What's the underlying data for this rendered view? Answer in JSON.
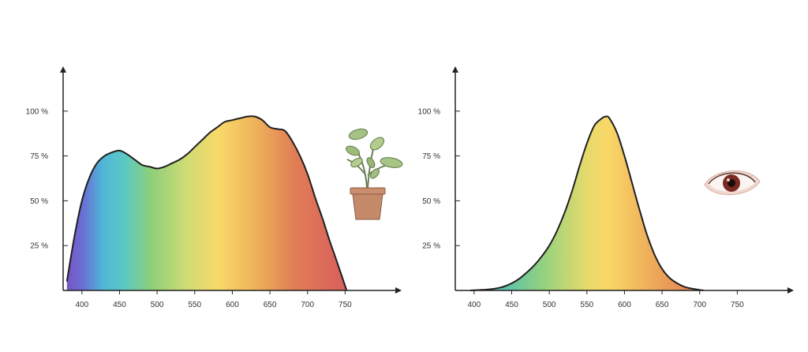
{
  "chart_data": [
    {
      "type": "area",
      "title": "",
      "xlabel": "",
      "ylabel": "",
      "x_ticks": [
        "400",
        "450",
        "500",
        "550",
        "600",
        "650",
        "700",
        "750"
      ],
      "y_ticks": [
        "25 %",
        "50 %",
        "75 %",
        "100 %"
      ],
      "xlim": [
        375,
        815
      ],
      "ylim": [
        0,
        125
      ],
      "grid": false,
      "fill": "visible-spectrum gradient",
      "icon": "potted-plant-icon",
      "series": [
        {
          "x": [
            380,
            390,
            400,
            410,
            420,
            430,
            440,
            450,
            460,
            470,
            480,
            490,
            500,
            510,
            520,
            530,
            540,
            550,
            560,
            570,
            580,
            590,
            600,
            610,
            620,
            630,
            640,
            650,
            660,
            670,
            680,
            690,
            700,
            710,
            720,
            730,
            740,
            752
          ],
          "values": [
            5,
            30,
            50,
            63,
            71,
            75,
            77,
            78,
            76,
            73,
            70,
            69,
            68,
            69,
            71,
            73,
            76,
            80,
            84,
            88,
            91,
            94,
            95,
            96,
            97,
            97,
            95,
            91,
            90,
            89,
            83,
            75,
            65,
            52,
            40,
            27,
            15,
            0
          ]
        }
      ]
    },
    {
      "type": "area",
      "title": "",
      "xlabel": "",
      "ylabel": "",
      "x_ticks": [
        "400",
        "450",
        "500",
        "550",
        "600",
        "650",
        "700",
        "750"
      ],
      "y_ticks": [
        "25 %",
        "50 %",
        "75 %",
        "100 %"
      ],
      "xlim": [
        375,
        815
      ],
      "ylim": [
        0,
        125
      ],
      "grid": false,
      "fill": "visible-spectrum gradient",
      "icon": "eye-icon",
      "series": [
        {
          "x": [
            395,
            410,
            420,
            430,
            440,
            450,
            460,
            470,
            480,
            490,
            500,
            510,
            520,
            530,
            540,
            550,
            560,
            570,
            575,
            580,
            590,
            600,
            610,
            620,
            630,
            640,
            650,
            660,
            670,
            680,
            690,
            700,
            705
          ],
          "values": [
            0,
            0.3,
            0.6,
            1.2,
            2.2,
            4,
            6.5,
            10,
            14,
            19,
            25,
            33,
            43,
            55,
            69,
            82,
            92,
            96,
            97,
            96,
            88,
            75,
            60,
            45,
            31,
            20,
            12,
            7,
            4,
            2,
            1,
            0.3,
            0
          ]
        }
      ]
    }
  ]
}
